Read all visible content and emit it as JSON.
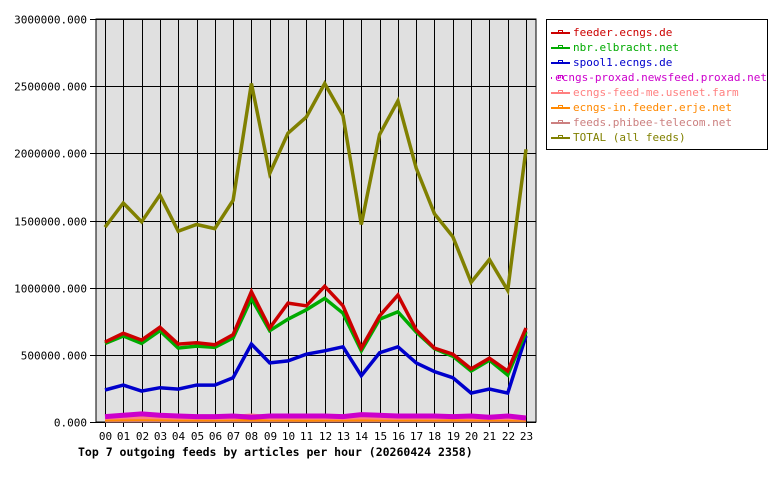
{
  "chart_data": {
    "type": "line",
    "title": "Top 7 outgoing feeds by articles per hour (20260424 2358)",
    "xlabel": "",
    "ylabel": "",
    "ylim": [
      0,
      3000000
    ],
    "yticks": [
      "0.000",
      "500000.000",
      "1000000.000",
      "1500000.000",
      "2000000.000",
      "2500000.000",
      "3000000.000"
    ],
    "grid": true,
    "legend_position": "right",
    "categories": [
      "00",
      "01",
      "02",
      "03",
      "04",
      "05",
      "06",
      "07",
      "08",
      "09",
      "10",
      "11",
      "12",
      "13",
      "14",
      "15",
      "16",
      "17",
      "18",
      "19",
      "20",
      "21",
      "22",
      "23"
    ],
    "series": [
      {
        "name": "feeder.ecngs.de",
        "color": "#cc0000",
        "values": [
          595000,
          660000,
          610000,
          705000,
          580000,
          590000,
          575000,
          650000,
          970000,
          700000,
          885000,
          865000,
          1010000,
          865000,
          550000,
          790000,
          945000,
          685000,
          550000,
          505000,
          395000,
          475000,
          380000,
          700000
        ]
      },
      {
        "name": "nbr.elbracht.net",
        "color": "#00aa00",
        "values": [
          584000,
          640000,
          585000,
          680000,
          550000,
          565000,
          555000,
          625000,
          920000,
          680000,
          765000,
          835000,
          920000,
          810000,
          530000,
          765000,
          820000,
          670000,
          545000,
          490000,
          380000,
          460000,
          350000,
          670000
        ]
      },
      {
        "name": "spool1.ecngs.de",
        "color": "#0000cc",
        "values": [
          238000,
          275000,
          230000,
          255000,
          245000,
          275000,
          275000,
          330000,
          580000,
          440000,
          455000,
          505000,
          530000,
          560000,
          345000,
          515000,
          560000,
          440000,
          375000,
          330000,
          215000,
          245000,
          215000,
          640000
        ]
      },
      {
        "name": "ecngs-proxad.newsfeed.proxad.net",
        "color": "#cc00cc",
        "values": [
          40000,
          50000,
          60000,
          50000,
          45000,
          40000,
          40000,
          45000,
          35000,
          45000,
          45000,
          45000,
          45000,
          40000,
          55000,
          50000,
          45000,
          45000,
          45000,
          40000,
          45000,
          35000,
          45000,
          30000
        ]
      },
      {
        "name": "ecngs-feed-me.usenet.farm",
        "color": "#ff8080",
        "values": [
          35000,
          38000,
          40000,
          38000,
          36000,
          35000,
          34000,
          36000,
          45000,
          34000,
          35000,
          35000,
          36000,
          34000,
          38000,
          36000,
          34000,
          35000,
          34000,
          38000,
          35000,
          34000,
          35000,
          30000
        ]
      },
      {
        "name": "ecngs-in.feeder.erje.net",
        "color": "#ff8800",
        "values": [
          22000,
          24000,
          26000,
          24000,
          22000,
          22000,
          22000,
          23000,
          22000,
          22000,
          22000,
          21000,
          22000,
          22000,
          22000,
          22000,
          22000,
          22000,
          22000,
          22000,
          22000,
          22000,
          22000,
          20000
        ]
      },
      {
        "name": "feeds.phibee-telecom.net",
        "color": "#cc8080",
        "values": [
          15000,
          15000,
          15000,
          15000,
          15000,
          15000,
          15000,
          15000,
          15000,
          15000,
          15000,
          15000,
          15000,
          15000,
          15000,
          15000,
          15000,
          15000,
          15000,
          15000,
          15000,
          15000,
          15000,
          15000
        ]
      },
      {
        "name": "TOTAL (all feeds)",
        "color": "#808000",
        "values": [
          1450000,
          1630000,
          1490000,
          1690000,
          1420000,
          1470000,
          1440000,
          1650000,
          2520000,
          1850000,
          2150000,
          2270000,
          2520000,
          2280000,
          1470000,
          2140000,
          2390000,
          1890000,
          1550000,
          1380000,
          1040000,
          1210000,
          980000,
          2030000
        ]
      }
    ]
  },
  "legend": {
    "items": [
      {
        "label": "feeder.ecngs.de",
        "color": "#cc0000"
      },
      {
        "label": "nbr.elbracht.net",
        "color": "#00aa00"
      },
      {
        "label": "spool1.ecngs.de",
        "color": "#0000cc"
      },
      {
        "label": "ecngs-proxad.newsfeed.proxad.net",
        "color": "#cc00cc"
      },
      {
        "label": "ecngs-feed-me.usenet.farm",
        "color": "#ff8080"
      },
      {
        "label": "ecngs-in.feeder.erje.net",
        "color": "#ff8800"
      },
      {
        "label": "feeds.phibee-telecom.net",
        "color": "#cc8080"
      },
      {
        "label": "TOTAL (all feeds)",
        "color": "#808000"
      }
    ]
  },
  "colors": {
    "plot_background": "#e0e0e0",
    "grid": "#000000"
  }
}
